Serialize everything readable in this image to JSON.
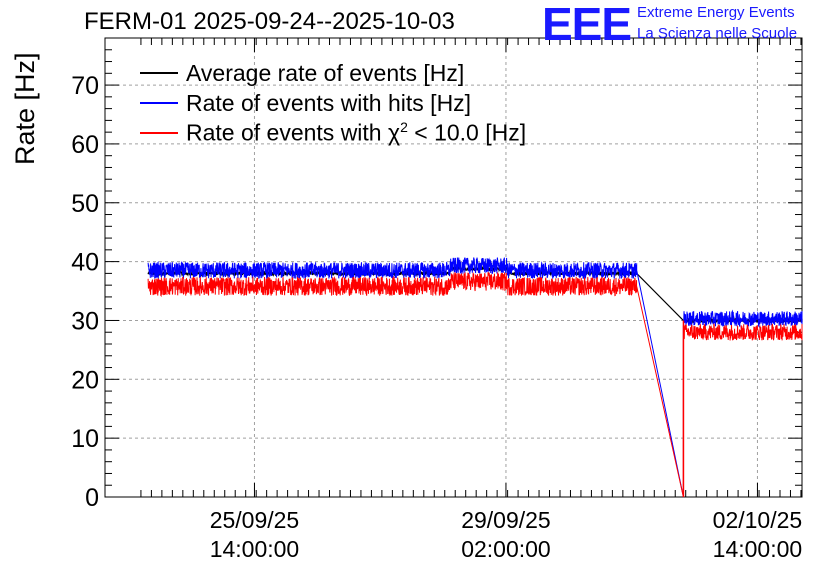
{
  "chart_data": {
    "type": "line",
    "title": "FERM-01 2025-09-24--2025-10-03",
    "ylabel": "Rate [Hz]",
    "xlabel": "",
    "ylim": [
      0,
      78
    ],
    "yticks": [
      0,
      10,
      20,
      30,
      40,
      50,
      60,
      70
    ],
    "xlim": [
      -0.5,
      9.2
    ],
    "xticks": [
      {
        "x": 1.58,
        "line1": "25/09/25",
        "line2": "14:00:00"
      },
      {
        "x": 5.08,
        "line1": "29/09/25",
        "line2": "02:00:00"
      },
      {
        "x": 8.58,
        "line1": "02/10/25",
        "line2": "14:00:00"
      }
    ],
    "grid": true,
    "legend_position": "top-left",
    "series": [
      {
        "name": "Average rate of events [Hz]",
        "color": "#000000",
        "segments": [
          {
            "x_start": 0.1,
            "x_end": 6.9,
            "mean": 38.0,
            "noise": 0.3
          },
          {
            "x_start": 6.9,
            "x_end": 7.55,
            "mean_start": 38.0,
            "mean_end": 30.0
          },
          {
            "x_start": 7.55,
            "x_end": 9.6,
            "mean": 30.0,
            "noise": 0.3
          }
        ]
      },
      {
        "name": "Rate of events with hits [Hz]",
        "color": "#0000ff",
        "segments": [
          {
            "x_start": 0.1,
            "x_end": 6.9,
            "mean": 38.5,
            "noise": 1.4
          },
          {
            "x_start": 6.9,
            "x_end": 7.55,
            "mean_start": 38.5,
            "mean_end": 0
          },
          {
            "x_start": 7.55,
            "x_end": 9.6,
            "mean": 30.3,
            "noise": 1.3
          }
        ]
      },
      {
        "name": "Rate of events with χ² < 10.0 [Hz]",
        "color": "#ff0000",
        "segments": [
          {
            "x_start": 0.1,
            "x_end": 6.9,
            "mean": 35.8,
            "noise": 1.6
          },
          {
            "x_start": 6.9,
            "x_end": 7.55,
            "mean_start": 35.8,
            "mean_end": 0
          },
          {
            "x_start": 7.55,
            "x_end": 9.6,
            "mean": 28.0,
            "noise": 1.4
          }
        ]
      }
    ]
  },
  "legend": {
    "items": [
      {
        "label": "Average rate of events [Hz]",
        "color": "#000000"
      },
      {
        "label": "Rate of events with hits [Hz]",
        "color": "#0000ff"
      },
      {
        "label_prefix": "Rate of events with χ",
        "label_sup": "2",
        "label_suffix": " < 10.0 [Hz]",
        "color": "#ff0000"
      }
    ]
  },
  "logo": {
    "mark": "EEE",
    "line1": "Extreme Energy Events",
    "line2": "La Scienza nelle Scuole",
    "color": "#1a1aff"
  }
}
